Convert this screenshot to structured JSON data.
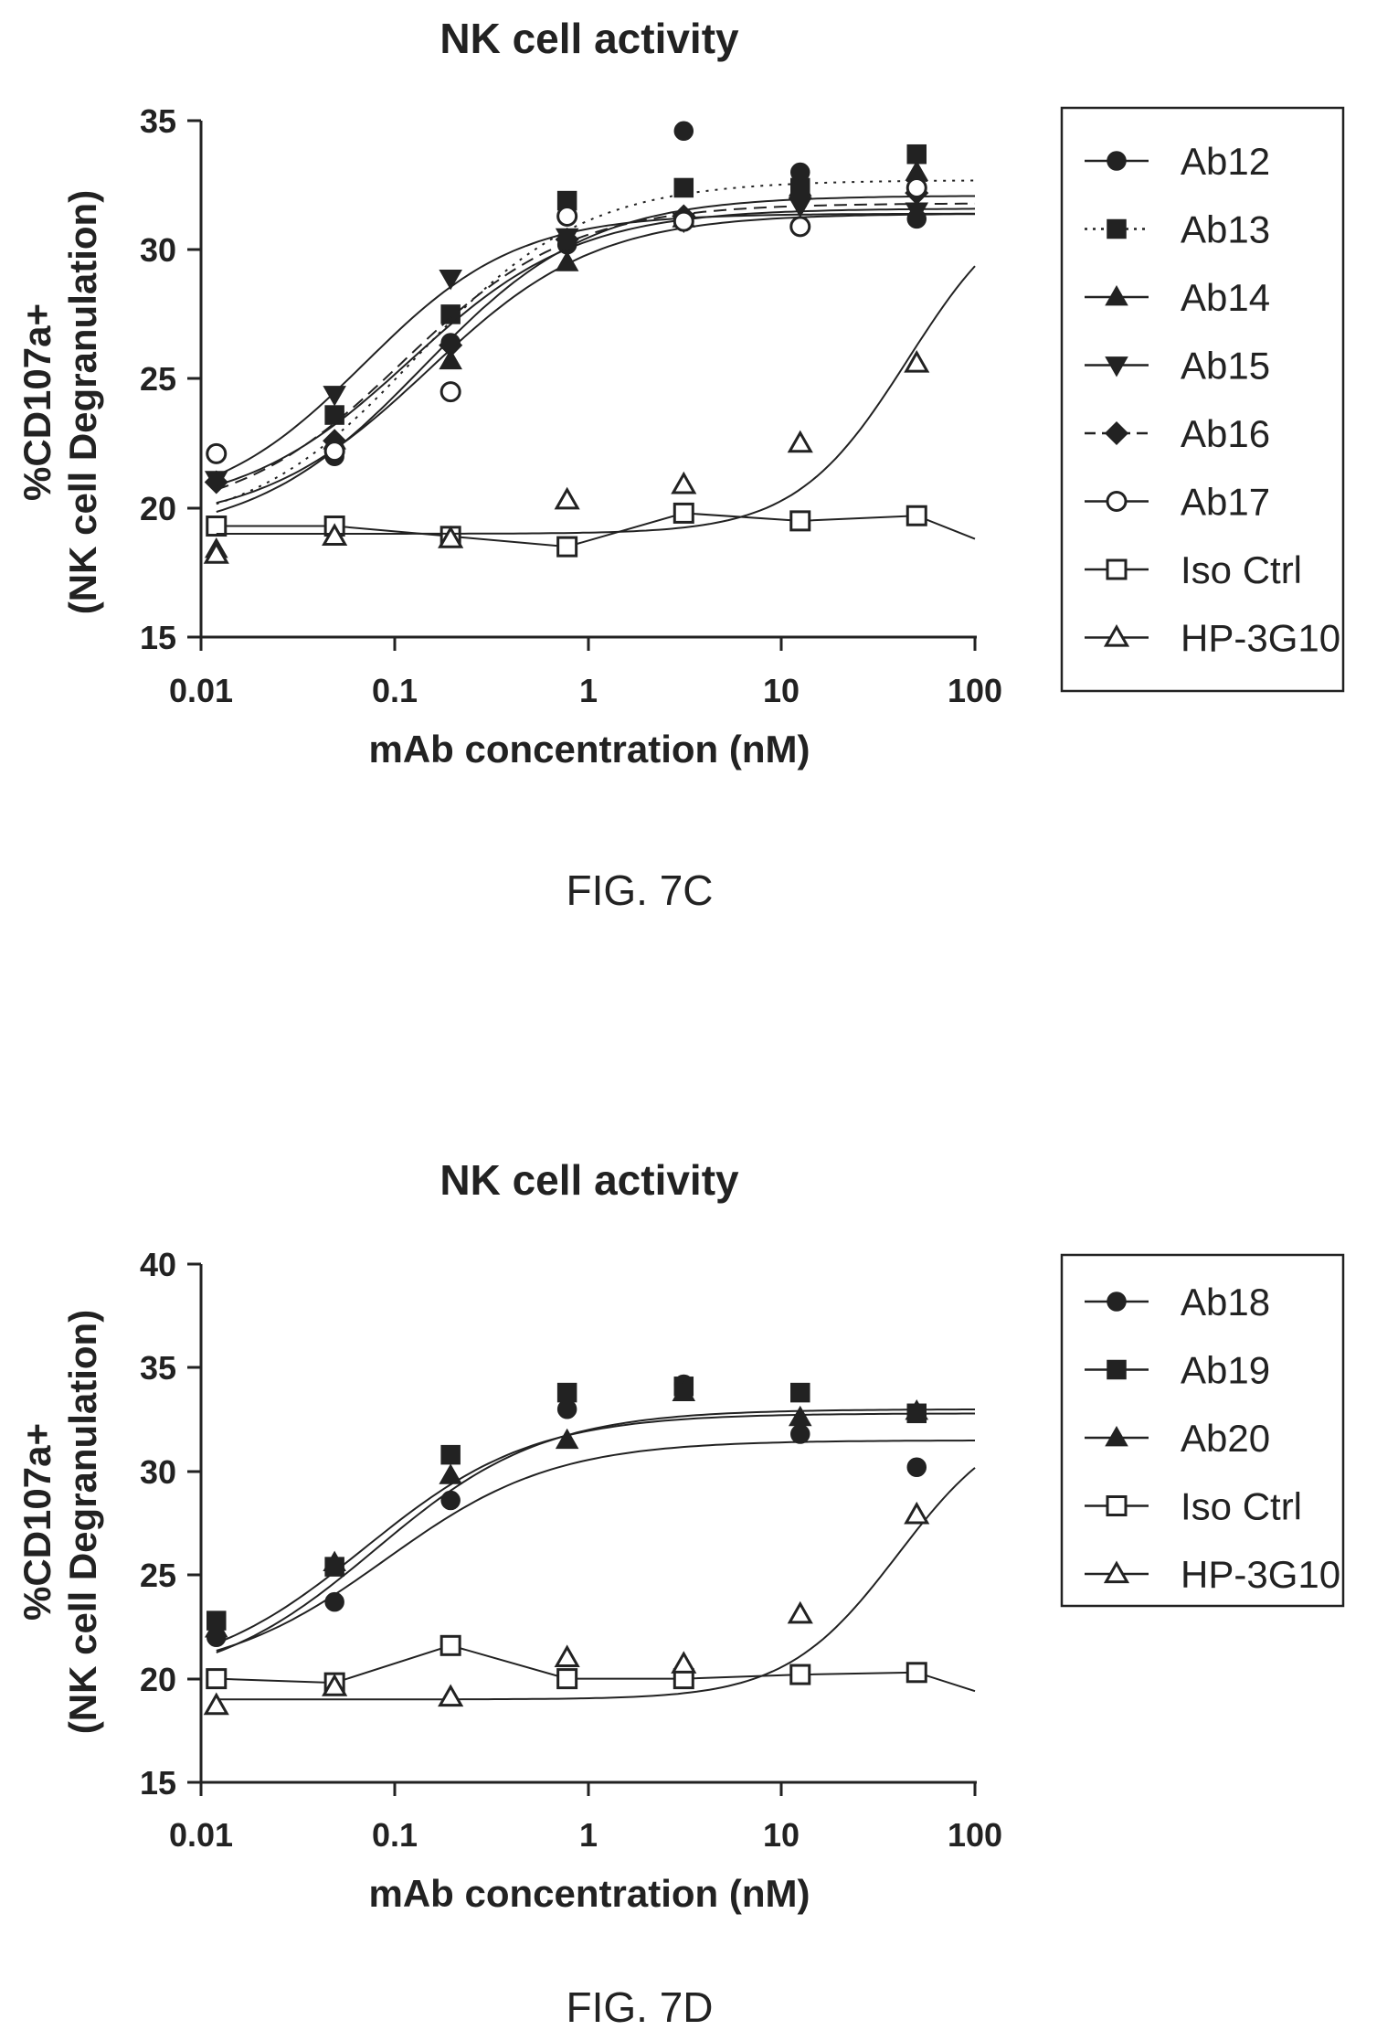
{
  "chart_data": [
    {
      "type": "scatter",
      "caption": "FIG. 7C",
      "title": "NK cell activity",
      "xlabel": "mAb concentration (nM)",
      "ylabel_lines": [
        "%CD107a+",
        "(NK cell  Degranulation)"
      ],
      "x_scale": "log",
      "xlim": [
        0.01,
        100
      ],
      "ylim": [
        15,
        35
      ],
      "xticks": [
        0.01,
        0.1,
        1,
        10,
        100
      ],
      "xtick_labels": [
        "0.01",
        "0.1",
        "1",
        "10",
        "100"
      ],
      "yticks": [
        15,
        20,
        25,
        30,
        35
      ],
      "ytick_labels": [
        "15",
        "20",
        "25",
        "30",
        "35"
      ],
      "x": [
        0.012,
        0.049,
        0.195,
        0.78,
        3.125,
        12.5,
        50
      ],
      "legend_position": "right",
      "series": [
        {
          "name": "Ab12",
          "marker": "circle",
          "filled": true,
          "line": "solid",
          "values": [
            19.3,
            22.0,
            26.4,
            30.2,
            34.6,
            33.0,
            31.2
          ],
          "fit": {
            "bottom": 19.3,
            "top": 31.4,
            "ec50": 0.15,
            "hill": 1.0
          }
        },
        {
          "name": "Ab13",
          "marker": "square",
          "filled": true,
          "line": "dotted",
          "values": [
            19.3,
            23.6,
            27.5,
            31.9,
            32.4,
            32.4,
            33.7
          ],
          "fit": {
            "bottom": 19.0,
            "top": 32.7,
            "ec50": 0.13,
            "hill": 1.0
          }
        },
        {
          "name": "Ab14",
          "marker": "triangle-up",
          "filled": true,
          "line": "solid",
          "values": [
            18.4,
            22.6,
            25.7,
            29.5,
            31.2,
            32.4,
            33.0
          ],
          "fit": {
            "bottom": 18.8,
            "top": 32.1,
            "ec50": 0.14,
            "hill": 1.0
          }
        },
        {
          "name": "Ab15",
          "marker": "triangle-down",
          "filled": true,
          "line": "solid",
          "values": [
            21.1,
            24.4,
            28.9,
            30.5,
            31.1,
            31.7,
            31.5
          ],
          "fit": {
            "bottom": 19.8,
            "top": 31.4,
            "ec50": 0.07,
            "hill": 1.1
          }
        },
        {
          "name": "Ab16",
          "marker": "diamond",
          "filled": true,
          "line": "dashed",
          "values": [
            21.0,
            22.6,
            26.3,
            30.4,
            31.3,
            32.0,
            32.2
          ],
          "fit": {
            "bottom": 19.5,
            "top": 31.8,
            "ec50": 0.11,
            "hill": 1.0
          }
        },
        {
          "name": "Ab17",
          "marker": "circle",
          "filled": false,
          "line": "solid",
          "values": [
            22.1,
            22.2,
            24.5,
            31.3,
            31.1,
            30.9,
            32.4
          ],
          "fit": {
            "bottom": 19.8,
            "top": 31.6,
            "ec50": 0.12,
            "hill": 1.0
          }
        },
        {
          "name": "Iso Ctrl",
          "marker": "square",
          "filled": false,
          "line": "solid",
          "values": [
            19.3,
            19.3,
            18.9,
            18.5,
            19.8,
            19.5,
            19.7
          ]
        },
        {
          "name": "HP-3G10",
          "marker": "triangle-up",
          "filled": false,
          "line": "solid",
          "values": [
            18.2,
            18.9,
            18.8,
            20.3,
            20.9,
            22.5,
            25.6
          ],
          "fit": {
            "bottom": 19.0,
            "top": 32.5,
            "ec50": 45.0,
            "hill": 1.5
          }
        }
      ]
    },
    {
      "type": "scatter",
      "caption": "FIG. 7D",
      "title": "NK cell activity",
      "xlabel": "mAb concentration (nM)",
      "ylabel_lines": [
        "%CD107a+",
        "(NK cell  Degranulation)"
      ],
      "x_scale": "log",
      "xlim": [
        0.01,
        100
      ],
      "ylim": [
        15,
        40
      ],
      "xticks": [
        0.01,
        0.1,
        1,
        10,
        100
      ],
      "xtick_labels": [
        "0.01",
        "0.1",
        "1",
        "10",
        "100"
      ],
      "yticks": [
        15,
        20,
        25,
        30,
        35,
        40
      ],
      "ytick_labels": [
        "15",
        "20",
        "25",
        "30",
        "35",
        "40"
      ],
      "x": [
        0.012,
        0.049,
        0.195,
        0.78,
        3.125,
        12.5,
        50
      ],
      "legend_position": "right",
      "series": [
        {
          "name": "Ab18",
          "marker": "circle",
          "filled": true,
          "line": "solid",
          "values": [
            22.0,
            23.7,
            28.6,
            33.0,
            34.2,
            31.8,
            30.2
          ],
          "fit": {
            "bottom": 20.0,
            "top": 31.5,
            "ec50": 0.09,
            "hill": 1.0
          }
        },
        {
          "name": "Ab19",
          "marker": "square",
          "filled": true,
          "line": "solid",
          "values": [
            22.8,
            25.4,
            30.8,
            33.8,
            34.1,
            33.8,
            32.8
          ],
          "fit": {
            "bottom": 19.5,
            "top": 33.0,
            "ec50": 0.08,
            "hill": 1.0
          }
        },
        {
          "name": "Ab20",
          "marker": "triangle-up",
          "filled": true,
          "line": "solid",
          "values": [
            22.4,
            25.6,
            29.8,
            31.5,
            33.8,
            32.6,
            32.9
          ],
          "fit": {
            "bottom": 19.8,
            "top": 32.8,
            "ec50": 0.07,
            "hill": 1.0
          }
        },
        {
          "name": "Iso Ctrl",
          "marker": "square",
          "filled": false,
          "line": "solid",
          "values": [
            20.0,
            19.8,
            21.6,
            20.0,
            20.0,
            20.2,
            20.3
          ]
        },
        {
          "name": "HP-3G10",
          "marker": "triangle-up",
          "filled": false,
          "line": "solid",
          "values": [
            18.7,
            19.6,
            19.1,
            21.0,
            20.7,
            23.1,
            27.9
          ],
          "fit": {
            "bottom": 19.0,
            "top": 33.0,
            "ec50": 40.0,
            "hill": 1.5
          }
        }
      ]
    }
  ]
}
